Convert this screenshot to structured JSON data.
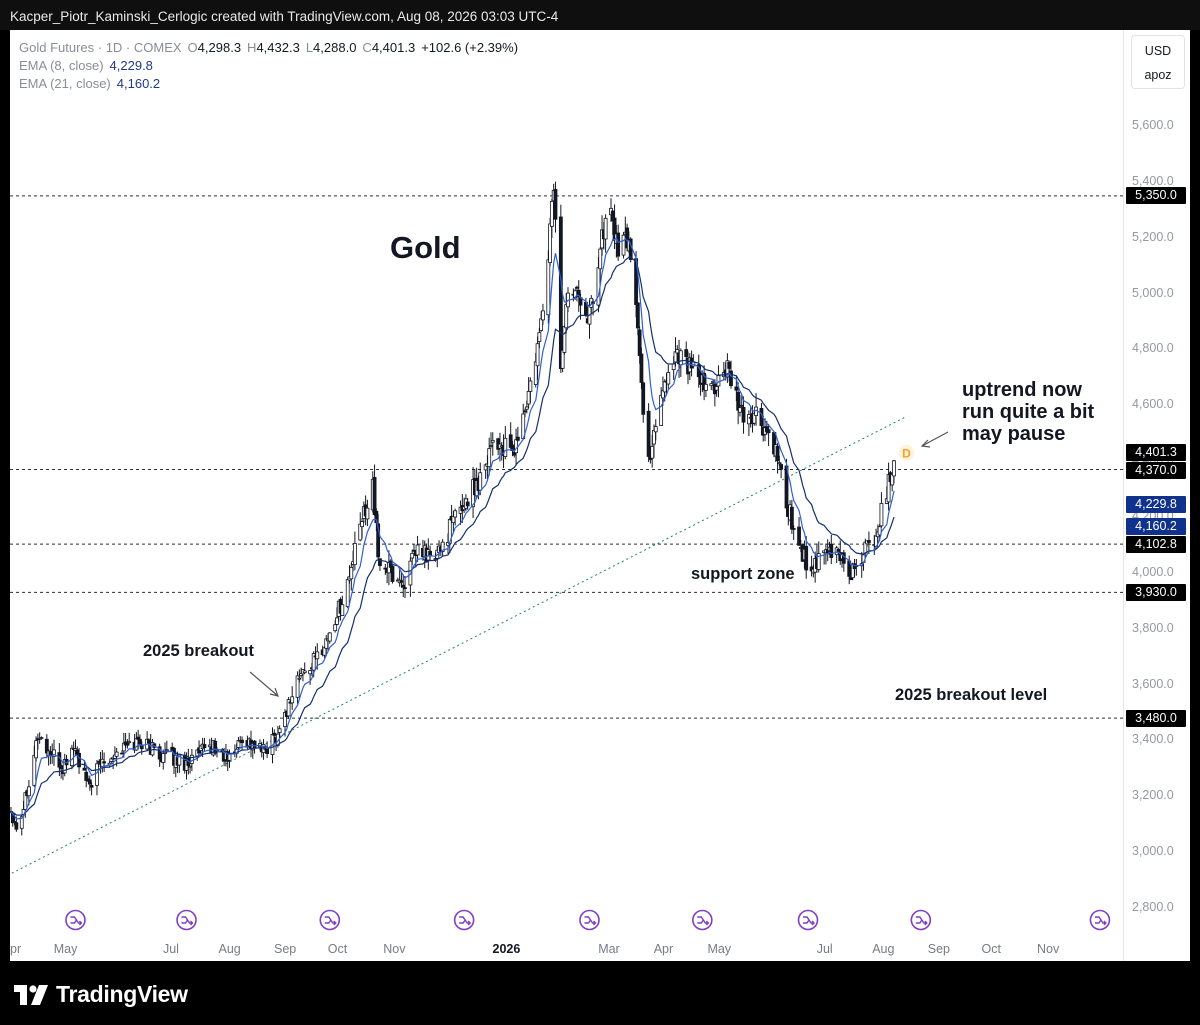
{
  "topbar": {
    "text": "Kacper_Piotr_Kaminski_Cerlogic created with TradingView.com, Aug 08, 2026 03:03 UTC-4"
  },
  "legend": {
    "symbol": "Gold Futures · 1D · COMEX",
    "o_label": "O",
    "o": "4,298.3",
    "h_label": "H",
    "h": "4,432.3",
    "l_label": "L",
    "l": "4,288.0",
    "c_label": "C",
    "c": "4,401.3",
    "change": "+102.6 (+2.39%)",
    "ema8_label": "EMA (8, close)",
    "ema8": "4,229.8",
    "ema21_label": "EMA (21, close)",
    "ema21": "4,160.2"
  },
  "unit_box": {
    "currency": "USD",
    "scale": "apoz"
  },
  "footer": {
    "brand": "TradingView"
  },
  "colors": {
    "ema_fast": "#2f5fd4",
    "ema_slow": "#142f6e",
    "candle": "#131722",
    "trend": "#1e8a5a",
    "event": "#7e3fc0",
    "label_bg": "#000000",
    "ema_tag": "#10328c",
    "dividend": "#f7a21b"
  },
  "chart_data": {
    "type": "candlestick",
    "title": "Gold",
    "symbol": "Gold Futures · 1D · COMEX",
    "ylim": [
      2800,
      5600
    ],
    "y_ticks": [
      "2,800.0",
      "3,000.0",
      "3,200.0",
      "3,400.0",
      "3,600.0",
      "3,800.0",
      "4,000.0",
      "4,200.0",
      "4,400.0",
      "4,600.0",
      "4,800.0",
      "5,000.0",
      "5,200.0",
      "5,400.0",
      "5,600.0"
    ],
    "x_ticks": [
      {
        "label": "pr",
        "date": "2025-04-01",
        "bold": false
      },
      {
        "label": "May",
        "date": "2025-05-01",
        "bold": false
      },
      {
        "label": "Jul",
        "date": "2025-07-01",
        "bold": false
      },
      {
        "label": "Aug",
        "date": "2025-08-01",
        "bold": false
      },
      {
        "label": "Sep",
        "date": "2025-09-01",
        "bold": false
      },
      {
        "label": "Oct",
        "date": "2025-10-01",
        "bold": false
      },
      {
        "label": "Nov",
        "date": "2025-11-01",
        "bold": false
      },
      {
        "label": "2026",
        "date": "2026-01-01",
        "bold": true
      },
      {
        "label": "Mar",
        "date": "2026-03-01",
        "bold": false
      },
      {
        "label": "Apr",
        "date": "2026-04-01",
        "bold": false
      },
      {
        "label": "May",
        "date": "2026-05-01",
        "bold": false
      },
      {
        "label": "Jul",
        "date": "2026-07-01",
        "bold": false
      },
      {
        "label": "Aug",
        "date": "2026-08-01",
        "bold": false
      },
      {
        "label": "Sep",
        "date": "2026-09-01",
        "bold": false
      },
      {
        "label": "Oct",
        "date": "2026-10-01",
        "bold": false
      },
      {
        "label": "Nov",
        "date": "2026-11-01",
        "bold": false
      }
    ],
    "price_path": [
      [
        "2025-04-01",
        3150
      ],
      [
        "2025-04-05",
        3080
      ],
      [
        "2025-04-10",
        3230
      ],
      [
        "2025-04-16",
        3420
      ],
      [
        "2025-04-22",
        3360
      ],
      [
        "2025-04-30",
        3300
      ],
      [
        "2025-05-06",
        3380
      ],
      [
        "2025-05-14",
        3230
      ],
      [
        "2025-05-22",
        3330
      ],
      [
        "2025-06-02",
        3370
      ],
      [
        "2025-06-12",
        3400
      ],
      [
        "2025-06-24",
        3350
      ],
      [
        "2025-07-08",
        3320
      ],
      [
        "2025-07-22",
        3380
      ],
      [
        "2025-08-01",
        3330
      ],
      [
        "2025-08-08",
        3410
      ],
      [
        "2025-08-20",
        3360
      ],
      [
        "2025-08-29",
        3440
      ],
      [
        "2025-09-08",
        3620
      ],
      [
        "2025-09-18",
        3690
      ],
      [
        "2025-09-26",
        3780
      ],
      [
        "2025-10-06",
        3960
      ],
      [
        "2025-10-14",
        4190
      ],
      [
        "2025-10-20",
        4330
      ],
      [
        "2025-10-23",
        4050
      ],
      [
        "2025-10-30",
        4000
      ],
      [
        "2025-11-06",
        3960
      ],
      [
        "2025-11-14",
        4080
      ],
      [
        "2025-11-24",
        4050
      ],
      [
        "2025-12-05",
        4200
      ],
      [
        "2025-12-18",
        4330
      ],
      [
        "2025-12-26",
        4480
      ],
      [
        "2026-01-06",
        4420
      ],
      [
        "2026-01-14",
        4600
      ],
      [
        "2026-01-21",
        4830
      ],
      [
        "2026-01-26",
        5150
      ],
      [
        "2026-01-29",
        5400
      ],
      [
        "2026-02-02",
        4750
      ],
      [
        "2026-02-05",
        4950
      ],
      [
        "2026-02-10",
        5050
      ],
      [
        "2026-02-18",
        4920
      ],
      [
        "2026-02-25",
        5200
      ],
      [
        "2026-03-02",
        5300
      ],
      [
        "2026-03-06",
        5150
      ],
      [
        "2026-03-12",
        5200
      ],
      [
        "2026-03-17",
        4900
      ],
      [
        "2026-03-20",
        4550
      ],
      [
        "2026-03-23",
        4400
      ],
      [
        "2026-03-30",
        4650
      ],
      [
        "2026-04-08",
        4800
      ],
      [
        "2026-04-15",
        4740
      ],
      [
        "2026-04-24",
        4650
      ],
      [
        "2026-05-06",
        4720
      ],
      [
        "2026-05-14",
        4560
      ],
      [
        "2026-05-22",
        4560
      ],
      [
        "2026-06-01",
        4450
      ],
      [
        "2026-06-08",
        4250
      ],
      [
        "2026-06-15",
        4100
      ],
      [
        "2026-06-22",
        4000
      ],
      [
        "2026-06-29",
        4060
      ],
      [
        "2026-07-06",
        4080
      ],
      [
        "2026-07-14",
        4000
      ],
      [
        "2026-07-22",
        4080
      ],
      [
        "2026-07-29",
        4160
      ],
      [
        "2026-08-03",
        4300
      ],
      [
        "2026-08-07",
        4401.3
      ]
    ],
    "ema_fast": {
      "name": "EMA (8, close)",
      "last": 4229.8
    },
    "ema_slow": {
      "name": "EMA (21, close)",
      "last": 4160.2
    },
    "levels": [
      {
        "value": 5350,
        "label": "5,350.0"
      },
      {
        "value": 4370,
        "label": "4,370.0"
      },
      {
        "value": 4102.8,
        "label": "4,102.8"
      },
      {
        "value": 3930,
        "label": "3,930.0"
      },
      {
        "value": 3480,
        "label": "3,480.0"
      }
    ],
    "last_price": {
      "value": 4401.3,
      "label": "4,401.3"
    },
    "ema_tags": [
      {
        "value": 4229.8,
        "label": "4,229.8"
      },
      {
        "value": 4160.2,
        "label": "4,160.2"
      }
    ],
    "trendline": [
      [
        "2025-03-25",
        2900
      ],
      [
        "2026-08-14",
        4560
      ]
    ],
    "event_markers": [
      "2025-05-07",
      "2025-07-08",
      "2025-09-26",
      "2025-12-10",
      "2026-02-18",
      "2026-04-22",
      "2026-06-20",
      "2026-08-22",
      "2026-11-30"
    ],
    "dividend_marker": {
      "date": "2026-08-14",
      "label": "D"
    },
    "annotations": [
      {
        "text": "Gold",
        "big": true
      },
      {
        "text": "2025 breakout"
      },
      {
        "text": "uptrend now"
      },
      {
        "text": "run quite a bit"
      },
      {
        "text": "may pause"
      },
      {
        "text": "support zone"
      },
      {
        "text": "2025 breakout level"
      }
    ]
  }
}
